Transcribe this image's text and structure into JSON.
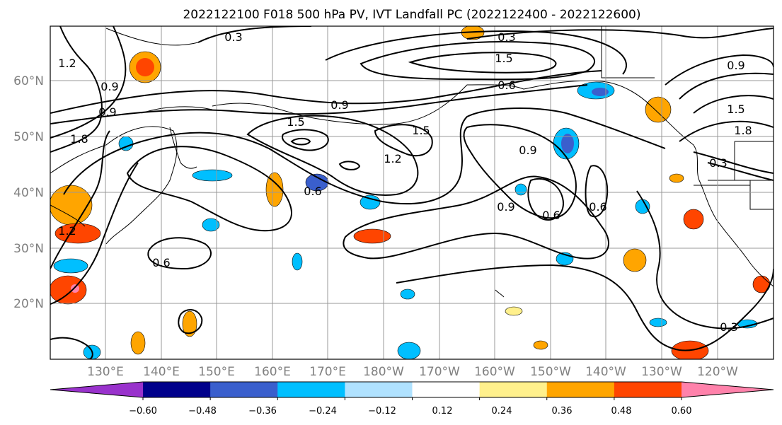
{
  "title": "2022122100 F018 500 hPa PV, IVT Landfall PC (2022122400 - 2022122600)",
  "map": {
    "lat_labels": [
      "60°N",
      "50°N",
      "40°N",
      "30°N",
      "20°N"
    ],
    "lon_labels": [
      "130°E",
      "140°E",
      "150°E",
      "160°E",
      "170°E",
      "180°W",
      "170°W",
      "160°W",
      "150°W",
      "140°W",
      "130°W",
      "120°W"
    ],
    "contour_labels": [
      "0.3",
      "0.3",
      "0.3",
      "0.3",
      "0.6",
      "0.6",
      "0.6",
      "0.6",
      "0.6",
      "0.9",
      "0.9",
      "0.9",
      "0.9",
      "0.9",
      "0.9",
      "1.2",
      "1.2",
      "1.2",
      "1.5",
      "1.5",
      "1.5",
      "1.5",
      "1.8",
      "1.8"
    ],
    "contour_color": "#000000",
    "grid": true
  },
  "colorbar": {
    "ticks": [
      "−0.60",
      "−0.48",
      "−0.36",
      "−0.24",
      "−0.12",
      "0.12",
      "0.24",
      "0.36",
      "0.48",
      "0.60"
    ],
    "colors": [
      "#9932cc",
      "#00008b",
      "#3a5fcd",
      "#00bfff",
      "#b0e2ff",
      "#ffffff",
      "#fff08c",
      "#ffa500",
      "#ff4500",
      "#b22222",
      "#ff82ab"
    ]
  }
}
